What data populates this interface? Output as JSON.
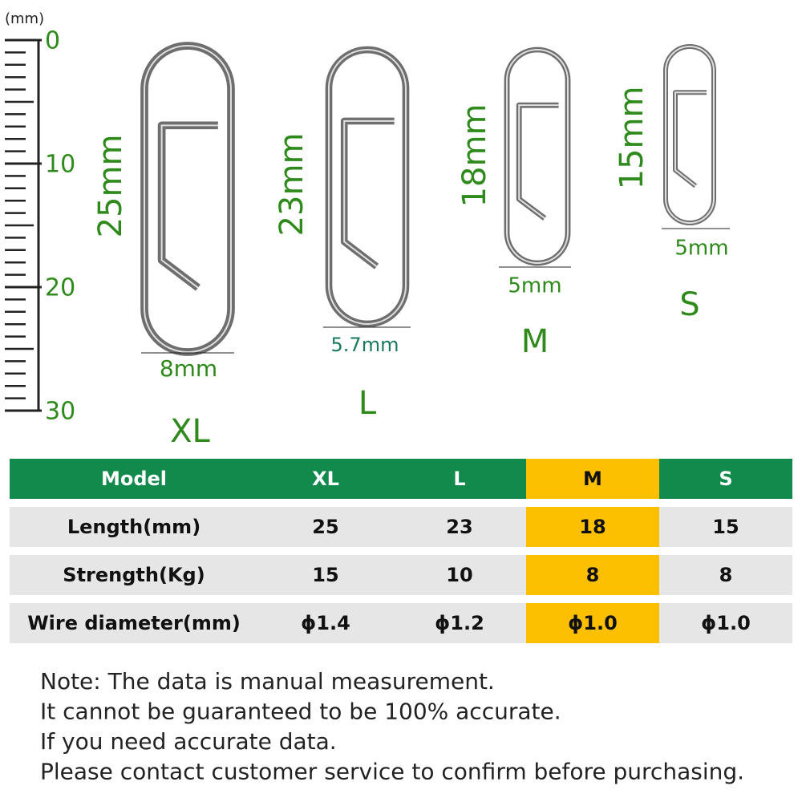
{
  "ruler": {
    "unit": "(mm)",
    "labels": [
      "0",
      "10",
      "20",
      "30"
    ]
  },
  "clips": [
    {
      "size": "XL",
      "length": "25mm",
      "width": "8mm"
    },
    {
      "size": "L",
      "length": "23mm",
      "width": "5.7mm"
    },
    {
      "size": "M",
      "length": "18mm",
      "width": "5mm"
    },
    {
      "size": "S",
      "length": "15mm",
      "width": "5mm"
    }
  ],
  "table": {
    "header": [
      "Model",
      "XL",
      "L",
      "M",
      "S"
    ],
    "rows": [
      [
        "Length(mm)",
        25,
        23,
        18,
        15
      ],
      [
        "Strength(Kg)",
        15,
        10,
        8,
        8
      ],
      [
        "Wire diameter(mm)",
        "ϕ1.4",
        "ϕ1.2",
        "ϕ1.0",
        "ϕ1.0"
      ]
    ]
  },
  "note": [
    "Note: The data is manual measurement.",
    "It cannot be guaranteed to be 100% accurate.",
    "If you need accurate data.",
    "Please contact customer service to confirm before purchasing."
  ]
}
